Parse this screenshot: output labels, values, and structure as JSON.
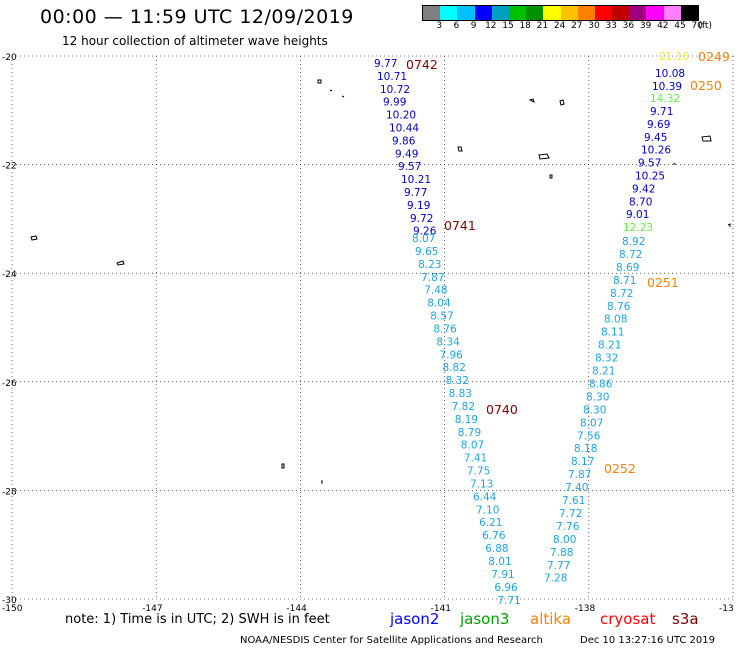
{
  "header": {
    "title": "00:00 — 11:59 UTC 12/09/2019",
    "subtitle": "12 hour collection of altimeter wave heights"
  },
  "colorbar": {
    "colors": [
      "#808080",
      "#00ffff",
      "#00c0ff",
      "#0000ff",
      "#00a0c0",
      "#00c000",
      "#009000",
      "#ffff00",
      "#ffc000",
      "#ff8000",
      "#ff0000",
      "#c00000",
      "#a00080",
      "#ff00ff",
      "#ff80ff",
      "#000000"
    ],
    "labels": [
      "3",
      "6",
      "9",
      "12",
      "15",
      "18",
      "21",
      "24",
      "27",
      "30",
      "33",
      "36",
      "39",
      "42",
      "45",
      "70",
      "(ft)"
    ]
  },
  "axes": {
    "y_labels": [
      "-20",
      "-22",
      "-24",
      "-26",
      "-28",
      "-30"
    ],
    "x_labels": [
      "-150",
      "-147",
      "-144",
      "-141",
      "-138",
      "-13"
    ]
  },
  "chart_data": {
    "type": "map",
    "lon_range": [
      -150,
      -135
    ],
    "lat_range": [
      -30,
      -20
    ],
    "grid": true,
    "passes": [
      {
        "label": "0742",
        "color": "#800000"
      },
      {
        "label": "0741",
        "color": "#800000"
      },
      {
        "label": "0740",
        "color": "#800000"
      },
      {
        "label": "0249",
        "color": "#ff8000"
      },
      {
        "label": "0250",
        "color": "#ff8000"
      },
      {
        "label": "0251",
        "color": "#ff8000"
      },
      {
        "label": "0252",
        "color": "#ff8000"
      }
    ],
    "track_left": {
      "dark": [
        "9.77",
        "10.71",
        "10.72",
        "9.99",
        "10.20",
        "10.44",
        "9.86",
        "9.49",
        "9.57",
        "10.21",
        "9.77",
        "9.19",
        "9.72",
        "9.26"
      ],
      "light": [
        "8.07",
        "9.65",
        "8.23",
        "7.87",
        "7.48",
        "8.04",
        "8.57",
        "8.76",
        "8.34",
        "7.96",
        "8.82",
        "8.32",
        "8.83",
        "7.82",
        "8.19",
        "8.79",
        "8.07",
        "7.41",
        "7.75",
        "7.13",
        "6.44",
        "7.10",
        "6.21",
        "6.76",
        "6.88",
        "8.01",
        "7.91",
        "6.96",
        "7.71"
      ]
    },
    "track_right": {
      "top_yellow": "21.16",
      "dark": [
        "10.08",
        "10.39"
      ],
      "green": "14.32",
      "dark2": [
        "9.71",
        "9.69",
        "9.45",
        "10.26",
        "9.57",
        "10.25",
        "9.42",
        "8.70",
        "9.01"
      ],
      "green2": "12.23",
      "light": [
        "8.92",
        "8.72",
        "8.69",
        "8.71",
        "8.72",
        "8.76",
        "8.08",
        "8.11",
        "8.21",
        "8.32",
        "8.21",
        "8.86",
        "8.30",
        "8.30",
        "8.07",
        "7.56",
        "8.18",
        "8.17",
        "7.87",
        "7.40",
        "7.61",
        "7.72",
        "7.76",
        "8.00",
        "7.88",
        "7.77",
        "7.28"
      ]
    }
  },
  "footer": {
    "note": "note: 1) Time is in UTC; 2) SWH is in feet",
    "legend": [
      {
        "name": "jason2",
        "color": "#0000ff"
      },
      {
        "name": "jason3",
        "color": "#00a000"
      },
      {
        "name": "altika",
        "color": "#ff8000"
      },
      {
        "name": "cryosat",
        "color": "#ff0000"
      },
      {
        "name": "s3a",
        "color": "#800000"
      }
    ],
    "credit": "NOAA/NESDIS Center for Satellite Applications and Research",
    "timestamp": "Dec 10 13:27:16 UTC 2019"
  }
}
